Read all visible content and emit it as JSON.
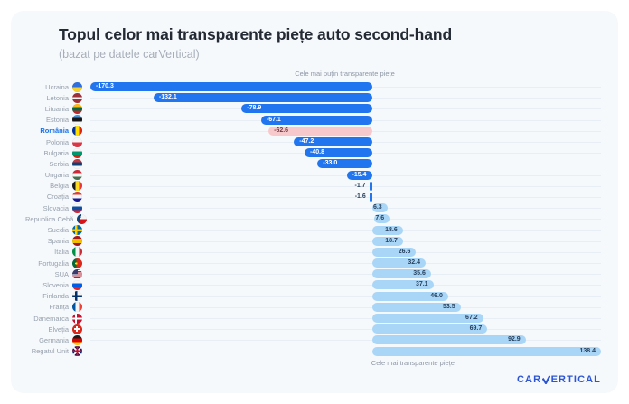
{
  "header": {
    "title": "Topul celor mai transparente piețe auto second-hand",
    "subtitle": "(bazat pe datele carVertical)"
  },
  "chart_data": {
    "type": "bar",
    "orientation": "horizontal",
    "title": "Topul celor mai transparente piețe auto second-hand",
    "subtitle": "(bazat pe datele carVertical)",
    "annotation_top": "Cele mai puțin transparente piețe",
    "annotation_bottom": "Cele mai transparente piețe",
    "xlim": [
      -170.3,
      138.4
    ],
    "grid": "horizontal-row-lines",
    "legend": "none",
    "highlight_category": "România",
    "categories": [
      "Ucraina",
      "Letonia",
      "Lituania",
      "Estonia",
      "România",
      "Polonia",
      "Bulgaria",
      "Serbia",
      "Ungaria",
      "Belgia",
      "Croația",
      "Slovacia",
      "Republica Cehă",
      "Suedia",
      "Spania",
      "Italia",
      "Portugalia",
      "SUA",
      "Slovenia",
      "Finlanda",
      "Franța",
      "Danemarca",
      "Elveția",
      "Germania",
      "Regatul Unit"
    ],
    "values": [
      -170.3,
      -132.1,
      -78.9,
      -67.1,
      -62.6,
      -47.2,
      -40.8,
      -33.0,
      -15.4,
      -1.7,
      -1.6,
      6.3,
      7.6,
      18.6,
      18.7,
      26.6,
      32.4,
      35.6,
      37.1,
      46.0,
      53.5,
      67.2,
      69.7,
      92.9,
      138.4
    ],
    "value_labels": [
      "-170.3",
      "-132.1",
      "-78.9",
      "-67.1",
      "-62.6",
      "-47.2",
      "-40.8",
      "-33.0",
      "-15.4",
      "-1.7",
      "-1.6",
      "6.3",
      "7.6",
      "18.6",
      "18.7",
      "26.6",
      "32.4",
      "35.6",
      "37.1",
      "46.0",
      "53.5",
      "67.2",
      "69.7",
      "92.9",
      "138.4"
    ],
    "flags": [
      "flag-ucraina",
      "flag-letonia",
      "flag-lituania",
      "flag-estonia",
      "flag-romania",
      "flag-polonia",
      "flag-bulgaria",
      "flag-serbia",
      "flag-ungaria",
      "flag-belgia",
      "flag-croatia",
      "flag-slovacia",
      "flag-cehia",
      "flag-suedia",
      "flag-spania",
      "flag-italia",
      "flag-portugalia",
      "flag-sua",
      "flag-slovenia",
      "flag-finlanda",
      "flag-franta",
      "flag-danemarca",
      "flag-elvetia",
      "flag-germania",
      "flag-regatul-unit"
    ]
  },
  "colors": {
    "negative_bar": "#2176f0",
    "positive_bar": "#a9d6f7",
    "highlight_bar": "#f8c9cc",
    "highlight_value_text": "#6e3b44",
    "value_text_dark": "#27415e",
    "value_text_light": "#ffffff",
    "country_highlight": "#1a73e8",
    "gridline": "#e8eef5",
    "card_background": "#f6f9fc",
    "logo_blue": "#2b55d6"
  },
  "logo": {
    "prefix": "CAR",
    "suffix": "ERTICAL",
    "label": "carVertical"
  }
}
